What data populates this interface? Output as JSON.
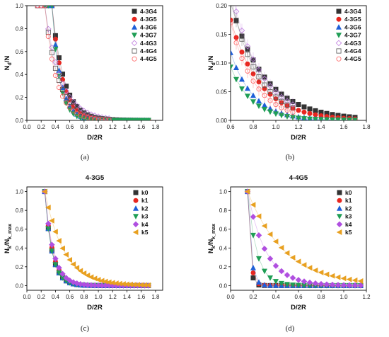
{
  "chart_data": [
    {
      "type": "scatter",
      "panel": "a",
      "caption": "(a)",
      "title": "",
      "xlabel": "D/2R",
      "ylabel": "N_d/N",
      "ylabel_main": "N",
      "ylabel_sub": "d",
      "ylabel_tail": "/N",
      "xlim": [
        0.0,
        1.9
      ],
      "ylim": [
        0.0,
        1.0
      ],
      "xticks": [
        "0.0",
        "0.2",
        "0.4",
        "0.6",
        "0.8",
        "1.0",
        "1.2",
        "1.4",
        "1.6",
        "1.8"
      ],
      "yticks": [
        "0.0",
        "0.2",
        "0.4",
        "0.6",
        "0.8",
        "1.0"
      ],
      "legend": "top-right",
      "series": [
        {
          "name": "4-3G4",
          "color": "#333333",
          "marker": "square",
          "x0": 0.25,
          "x1": 1.7,
          "tail": 1.0,
          "decay": 0.165
        },
        {
          "name": "4-3G5",
          "color": "#e8261f",
          "marker": "circle",
          "x0": 0.25,
          "x1": 1.7,
          "tail": 1.0,
          "decay": 0.145
        },
        {
          "name": "4-3G6",
          "color": "#1e5fd8",
          "marker": "triangle-up",
          "x0": 0.25,
          "x1": 1.7,
          "tail": 1.0,
          "decay": 0.12
        },
        {
          "name": "4-3G7",
          "color": "#1f9e55",
          "marker": "triangle-down",
          "x0": 0.25,
          "x1": 1.7,
          "tail": 1.0,
          "decay": 0.105
        },
        {
          "name": "4-4G3",
          "color": "#c080e0",
          "marker": "diamond-open",
          "x0": 0.15,
          "x1": 1.15,
          "tail": 1.0,
          "decay": 0.22
        },
        {
          "name": "4-4G4",
          "color": "#555555",
          "marker": "square-open",
          "x0": 0.15,
          "x1": 1.15,
          "tail": 1.0,
          "decay": 0.19
        },
        {
          "name": "4-4G5",
          "color": "#ff5a5a",
          "marker": "circle-open",
          "x0": 0.15,
          "x1": 1.15,
          "tail": 1.0,
          "decay": 0.16
        }
      ]
    },
    {
      "type": "scatter",
      "panel": "b",
      "caption": "(b)",
      "title": "",
      "xlabel": "D/2R",
      "ylabel": "N_d/N",
      "ylabel_main": "N",
      "ylabel_sub": "d",
      "ylabel_tail": "/N",
      "xlim": [
        0.6,
        1.8
      ],
      "ylim": [
        0.0,
        0.2
      ],
      "xticks": [
        "0.6",
        "0.8",
        "1.0",
        "1.2",
        "1.4",
        "1.6",
        "1.8"
      ],
      "yticks": [
        "0.00",
        "0.05",
        "0.10",
        "0.15",
        "0.20"
      ],
      "legend": "top-right",
      "series": [
        {
          "name": "4-3G4",
          "color": "#333333",
          "marker": "square",
          "y06": 0.205,
          "decay": 0.3,
          "x1": 1.7
        },
        {
          "name": "4-3G5",
          "color": "#e8261f",
          "marker": "circle",
          "y06": 0.175,
          "decay": 0.26,
          "x1": 1.7
        },
        {
          "name": "4-3G6",
          "color": "#1e5fd8",
          "marker": "triangle-up",
          "y06": 0.118,
          "decay": 0.2,
          "x1": 1.7
        },
        {
          "name": "4-3G7",
          "color": "#1f9e55",
          "marker": "triangle-down",
          "y06": 0.093,
          "decay": 0.19,
          "x1": 1.7
        },
        {
          "name": "4-4G3",
          "color": "#c080e0",
          "marker": "diamond-open",
          "y06": 0.23,
          "decay": 0.26,
          "x1": 1.15
        },
        {
          "name": "4-4G4",
          "color": "#555555",
          "marker": "square-open",
          "y06": 0.215,
          "decay": 0.24,
          "x1": 1.15
        },
        {
          "name": "4-4G5",
          "color": "#ff5a5a",
          "marker": "circle-open",
          "y06": 0.17,
          "decay": 0.22,
          "x1": 1.15
        }
      ]
    },
    {
      "type": "scatter",
      "panel": "c",
      "caption": "(c)",
      "title": "4-3G5",
      "xlabel": "D/2R",
      "ylabel": "N_k/N_k_max",
      "ylabel_main": "N",
      "ylabel_sub": "k",
      "ylabel_tail": "/N",
      "ylabel_sub2": "k_max",
      "xlim": [
        0.0,
        1.9
      ],
      "ylim": [
        -0.05,
        1.05
      ],
      "xticks": [
        "0.0",
        "0.2",
        "0.4",
        "0.6",
        "0.8",
        "1.0",
        "1.2",
        "1.4",
        "1.6",
        "1.8"
      ],
      "yticks": [
        "0.0",
        "0.2",
        "0.4",
        "0.6",
        "0.8",
        "1.0"
      ],
      "legend": "top-right",
      "series": [
        {
          "name": "k0",
          "color": "#333333",
          "marker": "square",
          "x0": 0.25,
          "x1": 1.7,
          "decay": 0.1
        },
        {
          "name": "k1",
          "color": "#e8261f",
          "marker": "circle",
          "x0": 0.25,
          "x1": 1.7,
          "decay": 0.11
        },
        {
          "name": "k2",
          "color": "#1e5fd8",
          "marker": "triangle-up",
          "x0": 0.25,
          "x1": 1.7,
          "decay": 0.1
        },
        {
          "name": "k3",
          "color": "#1f9e55",
          "marker": "triangle-down",
          "x0": 0.25,
          "x1": 1.7,
          "decay": 0.1
        },
        {
          "name": "k4",
          "color": "#b04fe0",
          "marker": "diamond",
          "x0": 0.25,
          "x1": 1.7,
          "decay": 0.12
        },
        {
          "name": "k5",
          "color": "#e8a020",
          "marker": "triangle-left",
          "x0": 0.25,
          "x1": 1.7,
          "decay": 0.27
        }
      ]
    },
    {
      "type": "scatter",
      "panel": "d",
      "caption": "(d)",
      "title": "4-4G5",
      "xlabel": "D/2R",
      "ylabel": "N_k/N_k_max",
      "ylabel_main": "N",
      "ylabel_sub": "k",
      "ylabel_tail": "/N",
      "ylabel_sub2": "k_max",
      "xlim": [
        0.0,
        1.2
      ],
      "ylim": [
        -0.05,
        1.05
      ],
      "xticks": [
        "0.0",
        "0.2",
        "0.4",
        "0.6",
        "0.8",
        "1.0",
        "1.2"
      ],
      "yticks": [
        "0.0",
        "0.2",
        "0.4",
        "0.6",
        "0.8",
        "1.0"
      ],
      "legend": "top-right",
      "series": [
        {
          "name": "k0",
          "color": "#333333",
          "marker": "square",
          "x0": 0.15,
          "x1": 1.15,
          "decay": 0.02
        },
        {
          "name": "k1",
          "color": "#e8261f",
          "marker": "circle",
          "x0": 0.15,
          "x1": 1.15,
          "decay": 0.025
        },
        {
          "name": "k2",
          "color": "#1e5fd8",
          "marker": "triangle-up",
          "x0": 0.15,
          "x1": 1.15,
          "decay": 0.03
        },
        {
          "name": "k3",
          "color": "#1f9e55",
          "marker": "triangle-down",
          "x0": 0.15,
          "x1": 1.15,
          "decay": 0.08
        },
        {
          "name": "k4",
          "color": "#b04fe0",
          "marker": "diamond",
          "x0": 0.15,
          "x1": 1.15,
          "decay": 0.16
        },
        {
          "name": "k5",
          "color": "#e8a020",
          "marker": "triangle-left",
          "x0": 0.15,
          "x1": 1.15,
          "decay": 0.33
        }
      ]
    }
  ]
}
